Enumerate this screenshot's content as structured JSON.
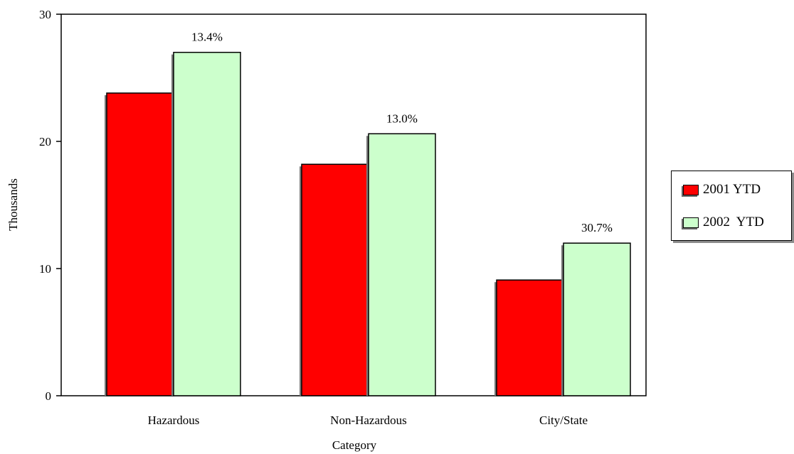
{
  "chart_data": {
    "type": "bar",
    "title": "",
    "xlabel": "Category",
    "ylabel": "Thousands",
    "categories": [
      "Hazardous",
      "Non-Hazardous",
      "City/State"
    ],
    "series": [
      {
        "name": "2001 YTD",
        "values": [
          23.8,
          18.2,
          9.1
        ],
        "color": "#ff0000"
      },
      {
        "name": "2002  YTD",
        "values": [
          27.0,
          20.6,
          12.0
        ],
        "color": "#ccffcc"
      }
    ],
    "annotations": [
      "13.4%",
      "13.0%",
      "30.7%"
    ],
    "ylim": [
      0,
      30
    ],
    "yticks": [
      0,
      10,
      20,
      30
    ],
    "grid": false,
    "legend_position": "right"
  }
}
